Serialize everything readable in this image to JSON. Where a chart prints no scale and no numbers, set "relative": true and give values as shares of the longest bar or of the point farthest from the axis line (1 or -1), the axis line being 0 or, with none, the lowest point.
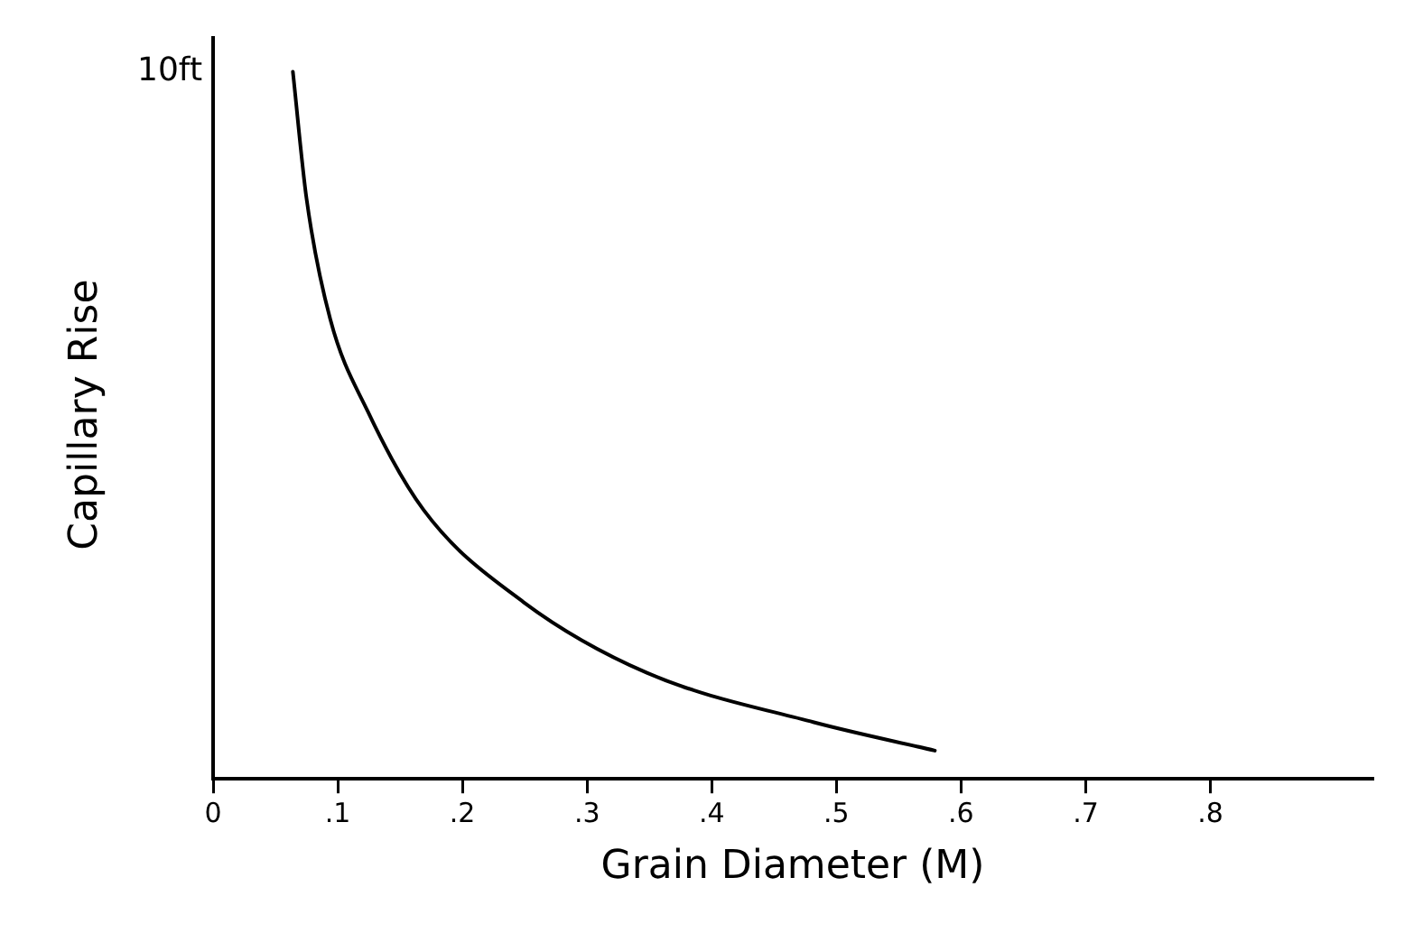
{
  "chart_data": {
    "type": "line",
    "xlabel": "Grain Diameter (M)",
    "ylabel": "Capillary Rise",
    "relative": true,
    "annotations": [
      "10ft"
    ],
    "series": [
      {
        "color": "#000000",
        "x": [
          0.064,
          0.075,
          0.094,
          0.124,
          0.169,
          0.249,
          0.348,
          0.482,
          0.579
        ],
        "values": [
          1,
          0.82,
          0.65,
          0.52,
          0.38,
          0.25,
          0.15,
          0.08,
          0.04
        ]
      }
    ],
    "xlim": [
      0,
      0.93
    ],
    "xticks": [
      0,
      {
        "value": 0.1,
        "label": ".1"
      },
      {
        "value": 0.2,
        "label": ".2"
      },
      {
        "value": 0.3,
        "label": ".3"
      },
      {
        "value": 0.4,
        "label": ".4"
      },
      {
        "value": 0.5,
        "label": ".5"
      },
      {
        "value": 0.6,
        "label": ".6"
      },
      {
        "value": 0.7,
        "label": ".7"
      },
      {
        "value": 0.8,
        "label": ".8"
      }
    ],
    "grid": false,
    "legend": false,
    "marker": "none",
    "line_style": "solid"
  }
}
